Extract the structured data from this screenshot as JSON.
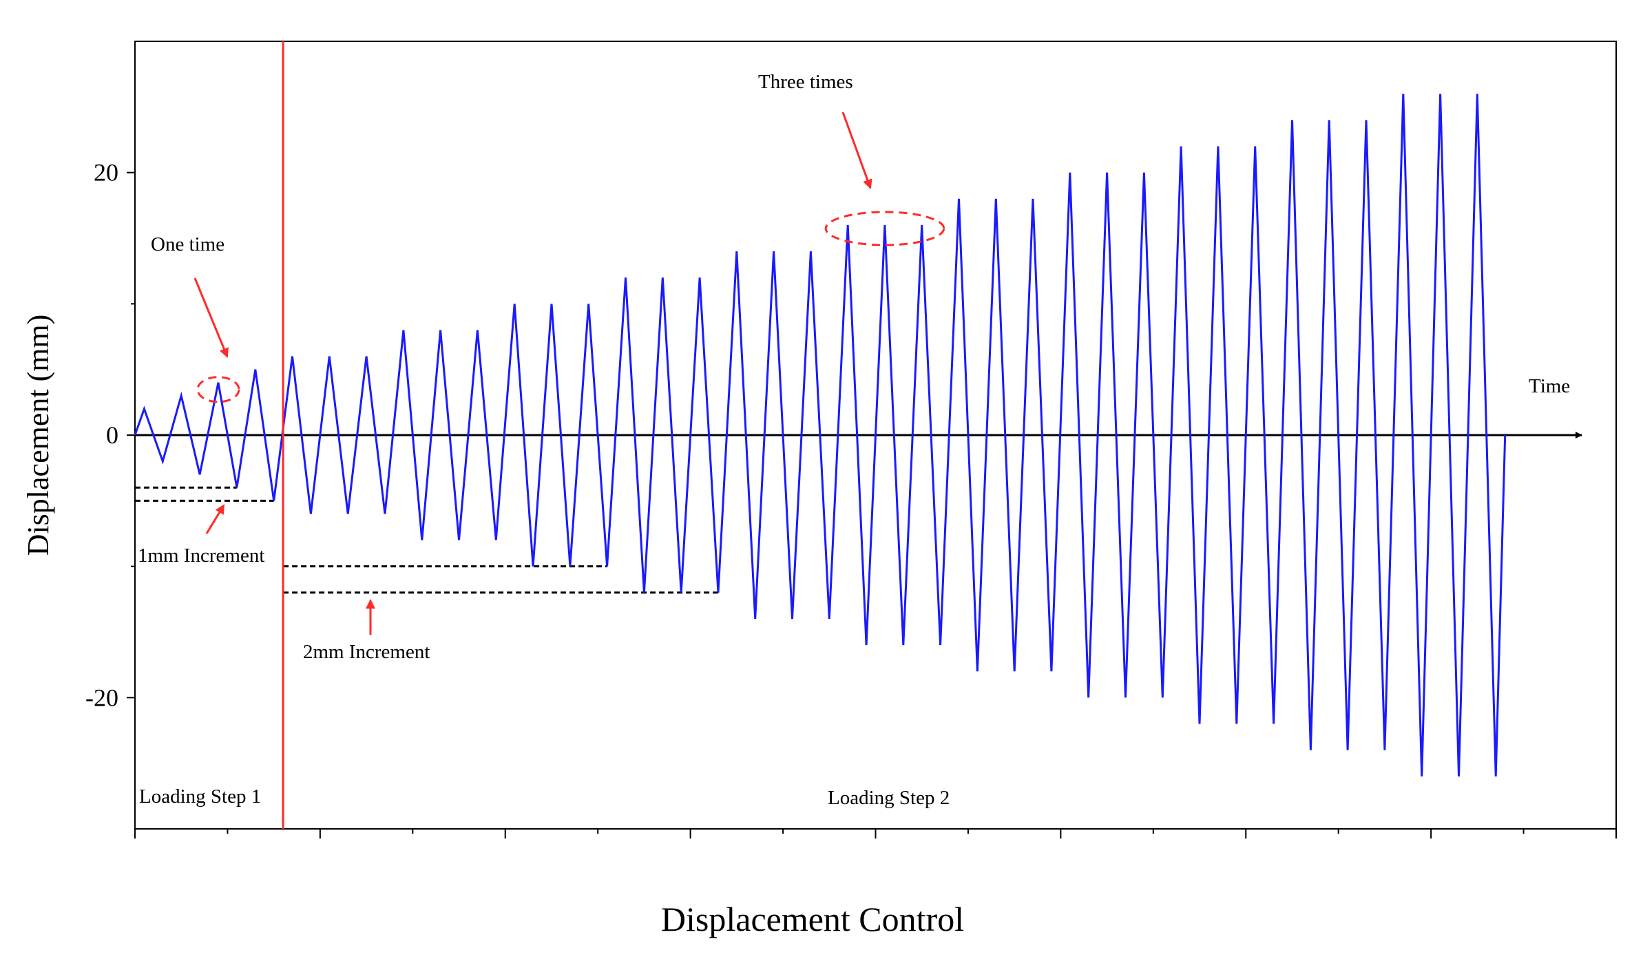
{
  "chart_data": {
    "type": "line",
    "title": "",
    "xlabel": "Displacement Control",
    "ylabel": "Displacement (mm)",
    "ylim": [
      -30,
      30
    ],
    "xlim": [
      0,
      80
    ],
    "yticks": [
      -20,
      0,
      20
    ],
    "ytick_labels": [
      "-20",
      "0",
      "20"
    ],
    "xticks_major": [
      0,
      10,
      20,
      30,
      40,
      50,
      60,
      70,
      80
    ],
    "xticks_minor": [
      5,
      15,
      25,
      35,
      45,
      55,
      65,
      75
    ],
    "grid": false,
    "time_axis_label": "Time",
    "divider_time": 8,
    "step1": {
      "label": "Loading Step 1",
      "amplitudes": [
        2,
        3,
        4,
        5
      ],
      "cycles_per_level": 1,
      "period": 2
    },
    "step2": {
      "label": "Loading Step 2",
      "amplitudes": [
        6,
        8,
        10,
        12,
        14,
        16,
        18,
        20,
        22,
        24,
        26
      ],
      "cycles_per_level": 3,
      "period": 2
    },
    "series": [
      {
        "name": "Displacement",
        "color": "#1a1aff"
      }
    ],
    "annotations": {
      "one_time": "One time",
      "three_times": "Three times",
      "inc1": "1mm Increment",
      "inc2": "2mm Increment"
    },
    "colors": {
      "curve": "#1a1aff",
      "divider": "#ff2a2a",
      "annotation": "#ff2a2a",
      "axis": "#000000"
    }
  }
}
